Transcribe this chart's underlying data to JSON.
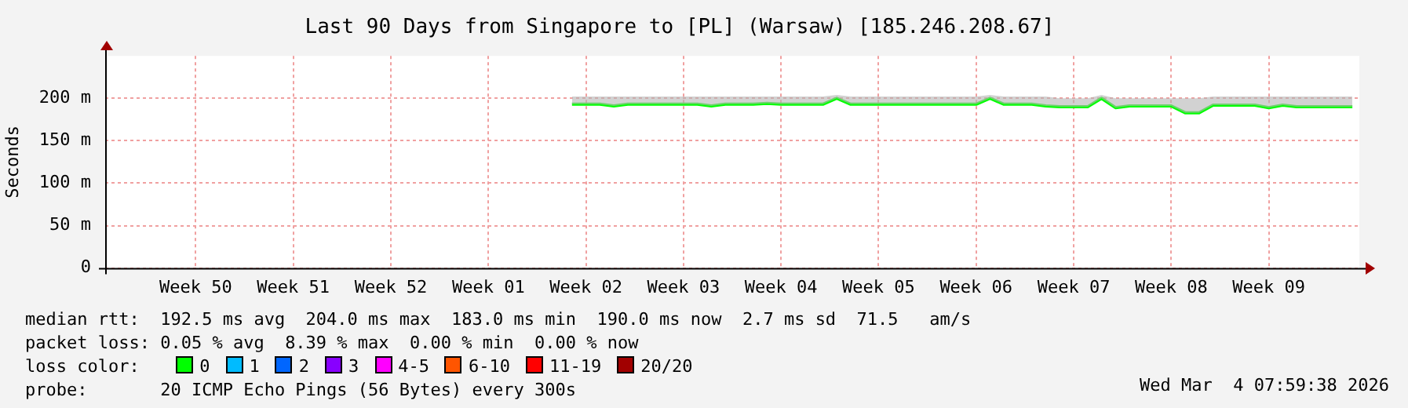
{
  "chart_data": {
    "type": "line",
    "title": "Last 90 Days from Singapore to [PL] (Warsaw) [185.246.208.67]",
    "ylabel": "Seconds",
    "legend_title": "loss color:",
    "legend": "bottom",
    "grid": true,
    "marker": "none",
    "line_style": "solid",
    "categories": [
      null,
      null,
      null,
      null,
      null,
      null,
      "Week 50",
      null,
      null,
      null,
      null,
      null,
      null,
      "Week 51",
      null,
      null,
      null,
      null,
      null,
      null,
      "Week 52",
      null,
      null,
      null,
      null,
      null,
      null,
      "Week 01",
      null,
      null,
      null,
      null,
      null,
      null,
      "Week 02",
      null,
      null,
      null,
      null,
      null,
      null,
      "Week 03",
      null,
      null,
      null,
      null,
      null,
      null,
      "Week 04",
      null,
      null,
      null,
      null,
      null,
      null,
      "Week 05",
      null,
      null,
      null,
      null,
      null,
      null,
      "Week 06",
      null,
      null,
      null,
      null,
      null,
      null,
      "Week 07",
      null,
      null,
      null,
      null,
      null,
      null,
      "Week 08",
      null,
      null,
      null,
      null,
      null,
      null,
      "Week 09",
      null,
      null,
      null,
      null,
      null,
      null
    ],
    "ylim": [
      0,
      250
    ],
    "yticks": [
      0,
      {
        "value": 50,
        "label": "50 m"
      },
      {
        "value": 100,
        "label": "100 m"
      },
      {
        "value": 150,
        "label": "150 m"
      },
      {
        "value": 200,
        "label": "200 m"
      }
    ],
    "series": [
      {
        "name": "0",
        "color": "#00ff00",
        "values": [
          null,
          null,
          null,
          null,
          null,
          null,
          null,
          null,
          null,
          null,
          null,
          null,
          null,
          null,
          null,
          null,
          null,
          null,
          null,
          null,
          null,
          null,
          null,
          null,
          null,
          null,
          null,
          null,
          null,
          null,
          null,
          null,
          null,
          193,
          193,
          193,
          191,
          193,
          193,
          193,
          193,
          193,
          193,
          191,
          193,
          193,
          193,
          194,
          193,
          193,
          193,
          193,
          200,
          193,
          193,
          193,
          193,
          193,
          193,
          193,
          193,
          193,
          193,
          200,
          193,
          193,
          193,
          191,
          190,
          190,
          190,
          200,
          189,
          191,
          191,
          191,
          191,
          183,
          183,
          192,
          192,
          192,
          192,
          189,
          192,
          190,
          190,
          190,
          190,
          190
        ],
        "lower": [
          null,
          null,
          null,
          null,
          null,
          null,
          null,
          null,
          null,
          null,
          null,
          null,
          null,
          null,
          null,
          null,
          null,
          null,
          null,
          null,
          null,
          null,
          null,
          null,
          null,
          null,
          null,
          null,
          null,
          null,
          null,
          null,
          null,
          193,
          193,
          193,
          191,
          193,
          193,
          193,
          193,
          193,
          193,
          191,
          193,
          193,
          193,
          194,
          193,
          193,
          193,
          193,
          200,
          193,
          193,
          193,
          193,
          193,
          193,
          193,
          193,
          193,
          193,
          200,
          193,
          193,
          193,
          191,
          190,
          190,
          190,
          200,
          189,
          191,
          191,
          191,
          191,
          183,
          183,
          192,
          192,
          192,
          192,
          189,
          192,
          190,
          190,
          190,
          190,
          190
        ],
        "upper": [
          null,
          null,
          null,
          null,
          null,
          null,
          null,
          null,
          null,
          null,
          null,
          null,
          null,
          null,
          null,
          null,
          null,
          null,
          null,
          null,
          null,
          null,
          null,
          null,
          null,
          null,
          null,
          null,
          null,
          null,
          null,
          null,
          null,
          202,
          202,
          202,
          202,
          202,
          202,
          202,
          202,
          202,
          202,
          202,
          202,
          202,
          202,
          202,
          202,
          202,
          202,
          202,
          204,
          202,
          202,
          202,
          202,
          202,
          202,
          202,
          202,
          202,
          202,
          204,
          202,
          202,
          202,
          202,
          200,
          200,
          200,
          204,
          200,
          200,
          200,
          200,
          200,
          200,
          200,
          202,
          202,
          202,
          202,
          202,
          202,
          202,
          202,
          202,
          202,
          202
        ]
      },
      {
        "name": "1",
        "color": "#00bbff",
        "values": [
          null,
          null,
          null,
          null,
          null,
          null,
          null,
          null,
          null,
          null,
          null,
          null,
          null,
          null,
          null,
          null,
          null,
          null,
          null,
          null,
          null,
          null,
          null,
          null,
          null,
          null,
          null,
          null,
          null,
          null,
          null,
          null,
          null,
          null,
          null,
          null,
          null,
          null,
          null,
          null,
          null,
          null,
          null,
          null,
          null,
          null,
          null,
          null,
          null,
          null,
          null,
          null,
          null,
          null,
          null,
          null,
          null,
          null,
          null,
          null,
          null,
          null,
          null,
          null,
          null,
          null,
          null,
          null,
          null,
          null,
          null,
          null,
          null,
          null,
          null,
          null,
          null,
          null,
          null,
          null,
          null,
          null,
          null,
          null,
          null,
          null,
          null,
          null,
          null,
          null
        ]
      },
      {
        "name": "2",
        "color": "#0066ff",
        "values": [
          null,
          null,
          null,
          null,
          null,
          null,
          null,
          null,
          null,
          null,
          null,
          null,
          null,
          null,
          null,
          null,
          null,
          null,
          null,
          null,
          null,
          null,
          null,
          null,
          null,
          null,
          null,
          null,
          null,
          null,
          null,
          null,
          null,
          null,
          null,
          null,
          null,
          null,
          null,
          null,
          null,
          null,
          null,
          null,
          null,
          null,
          null,
          null,
          null,
          null,
          null,
          null,
          null,
          null,
          null,
          null,
          null,
          null,
          null,
          null,
          null,
          null,
          null,
          null,
          null,
          null,
          null,
          null,
          null,
          null,
          null,
          null,
          null,
          null,
          null,
          null,
          null,
          null,
          null,
          null,
          null,
          null,
          null,
          null,
          null,
          null,
          null,
          null,
          null,
          null
        ]
      },
      {
        "name": "3",
        "color": "#8800ff",
        "values": [
          null,
          null,
          null,
          null,
          null,
          null,
          null,
          null,
          null,
          null,
          null,
          null,
          null,
          null,
          null,
          null,
          null,
          null,
          null,
          null,
          null,
          null,
          null,
          null,
          null,
          null,
          null,
          null,
          null,
          null,
          null,
          null,
          null,
          null,
          null,
          null,
          null,
          null,
          null,
          null,
          null,
          null,
          null,
          null,
          null,
          null,
          null,
          null,
          null,
          null,
          null,
          null,
          null,
          null,
          null,
          null,
          null,
          null,
          null,
          null,
          null,
          null,
          null,
          null,
          null,
          null,
          null,
          null,
          null,
          null,
          null,
          null,
          null,
          null,
          null,
          null,
          null,
          null,
          null,
          null,
          null,
          null,
          null,
          null,
          null,
          null,
          null,
          null,
          null,
          null
        ]
      },
      {
        "name": "4-5",
        "color": "#ff00ff",
        "values": [
          null,
          null,
          null,
          null,
          null,
          null,
          null,
          null,
          null,
          null,
          null,
          null,
          null,
          null,
          null,
          null,
          null,
          null,
          null,
          null,
          null,
          null,
          null,
          null,
          null,
          null,
          null,
          null,
          null,
          null,
          null,
          null,
          null,
          null,
          null,
          null,
          null,
          null,
          null,
          null,
          null,
          null,
          null,
          null,
          null,
          null,
          null,
          null,
          null,
          null,
          null,
          null,
          null,
          null,
          null,
          null,
          null,
          null,
          null,
          null,
          null,
          null,
          null,
          null,
          null,
          null,
          null,
          null,
          null,
          null,
          null,
          null,
          null,
          null,
          null,
          null,
          null,
          null,
          null,
          null,
          null,
          null,
          null,
          null,
          null,
          null,
          null,
          null,
          null,
          null
        ]
      },
      {
        "name": "6-10",
        "color": "#ff5500",
        "values": [
          null,
          null,
          null,
          null,
          null,
          null,
          null,
          null,
          null,
          null,
          null,
          null,
          null,
          null,
          null,
          null,
          null,
          null,
          null,
          null,
          null,
          null,
          null,
          null,
          null,
          null,
          null,
          null,
          null,
          null,
          null,
          null,
          null,
          null,
          null,
          null,
          null,
          null,
          null,
          null,
          null,
          null,
          null,
          null,
          null,
          null,
          null,
          null,
          null,
          null,
          null,
          null,
          null,
          null,
          null,
          null,
          null,
          null,
          null,
          null,
          null,
          null,
          null,
          null,
          null,
          null,
          null,
          null,
          null,
          null,
          null,
          null,
          null,
          null,
          null,
          null,
          null,
          null,
          null,
          null,
          null,
          null,
          null,
          null,
          null,
          null,
          null,
          null,
          null,
          null
        ]
      },
      {
        "name": "11-19",
        "color": "#ff0000",
        "values": [
          null,
          null,
          null,
          null,
          null,
          null,
          null,
          null,
          null,
          null,
          null,
          null,
          null,
          null,
          null,
          null,
          null,
          null,
          null,
          null,
          null,
          null,
          null,
          null,
          null,
          null,
          null,
          null,
          null,
          null,
          null,
          null,
          null,
          null,
          null,
          null,
          null,
          null,
          null,
          null,
          null,
          null,
          null,
          null,
          null,
          null,
          null,
          null,
          null,
          null,
          null,
          null,
          null,
          null,
          null,
          null,
          null,
          null,
          null,
          null,
          null,
          null,
          null,
          null,
          null,
          null,
          null,
          null,
          null,
          null,
          null,
          null,
          null,
          null,
          null,
          null,
          null,
          null,
          null,
          null,
          null,
          null,
          null,
          null,
          null,
          null,
          null,
          null,
          null,
          null
        ]
      },
      {
        "name": "20/20",
        "color": "#a10000",
        "values": [
          null,
          null,
          null,
          null,
          null,
          null,
          null,
          null,
          null,
          null,
          null,
          null,
          null,
          null,
          null,
          null,
          null,
          null,
          null,
          null,
          null,
          null,
          null,
          null,
          null,
          null,
          null,
          null,
          null,
          null,
          null,
          null,
          null,
          null,
          null,
          null,
          null,
          null,
          null,
          null,
          null,
          null,
          null,
          null,
          null,
          null,
          null,
          null,
          null,
          null,
          null,
          null,
          null,
          null,
          null,
          null,
          null,
          null,
          null,
          null,
          null,
          null,
          null,
          null,
          null,
          null,
          null,
          null,
          null,
          null,
          null,
          null,
          null,
          null,
          null,
          null,
          null,
          null,
          null,
          null,
          null,
          null,
          null,
          null,
          null,
          null,
          null,
          null,
          null,
          null
        ]
      }
    ],
    "annotations": [
      "median rtt:  192.5 ms avg  204.0 ms max  183.0 ms min  190.0 ms now  2.7 ms sd  71.5   am/s",
      "packet loss: 0.05 % avg  8.39 % max  0.00 % min  0.00 % now",
      "probe:       20 ICMP Echo Pings (56 Bytes) every 300s",
      "Wed Mar  4 07:59:38 2026"
    ]
  }
}
